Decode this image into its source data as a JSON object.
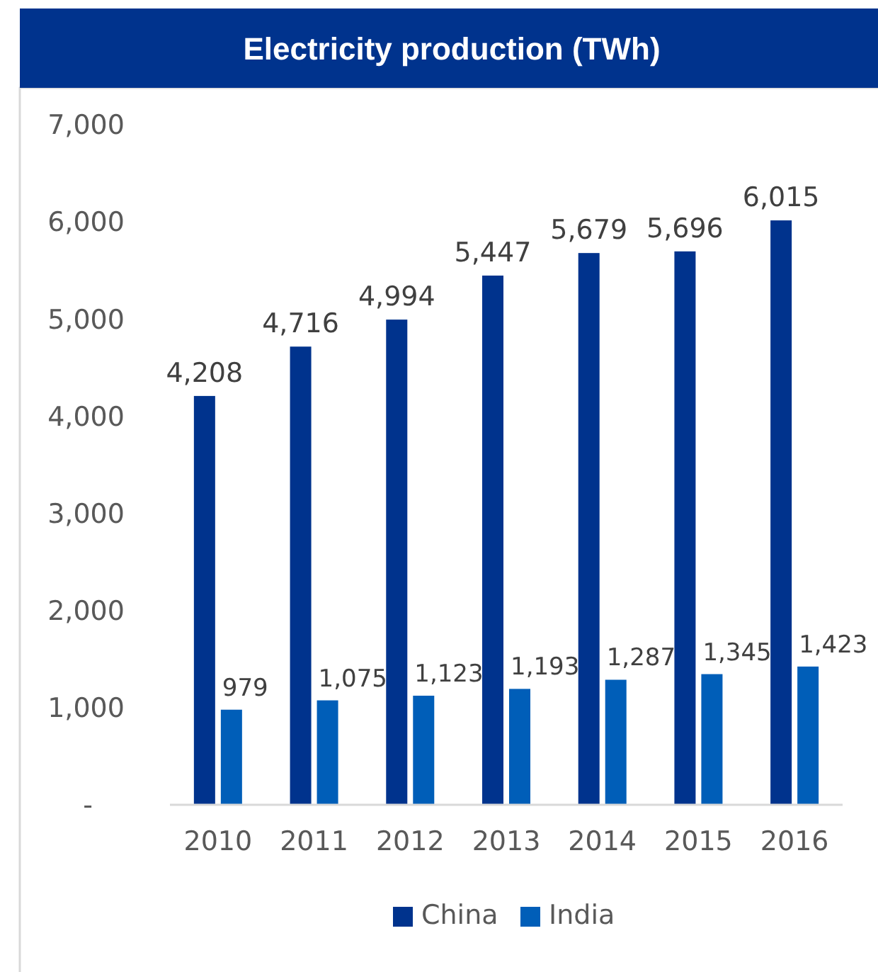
{
  "chart_data": {
    "type": "bar",
    "title": "Electricity production (TWh)",
    "categories": [
      "2010",
      "2011",
      "2012",
      "2013",
      "2014",
      "2015",
      "2016"
    ],
    "series": [
      {
        "name": "China",
        "color": "#00338d",
        "values": [
          4208,
          4716,
          4994,
          5447,
          5679,
          5696,
          6015
        ],
        "value_labels": [
          "4,208",
          "4,716",
          "4,994",
          "5,447",
          "5,679",
          "5,696",
          "6,015"
        ]
      },
      {
        "name": "India",
        "color": "#005eb8",
        "values": [
          979,
          1075,
          1123,
          1193,
          1287,
          1345,
          1423
        ],
        "value_labels": [
          "979",
          "1,075",
          "1,123",
          "1,193",
          "1,287",
          "1,345",
          "1,423"
        ]
      }
    ],
    "ylim": [
      0,
      7000
    ],
    "yticks": [
      {
        "value": 0,
        "label": "-"
      },
      {
        "value": 1000,
        "label": "1,000"
      },
      {
        "value": 2000,
        "label": "2,000"
      },
      {
        "value": 3000,
        "label": "3,000"
      },
      {
        "value": 4000,
        "label": "4,000"
      },
      {
        "value": 5000,
        "label": "5,000"
      },
      {
        "value": 6000,
        "label": "6,000"
      },
      {
        "value": 7000,
        "label": "7,000"
      }
    ],
    "grid": false,
    "legend": "bottom"
  }
}
